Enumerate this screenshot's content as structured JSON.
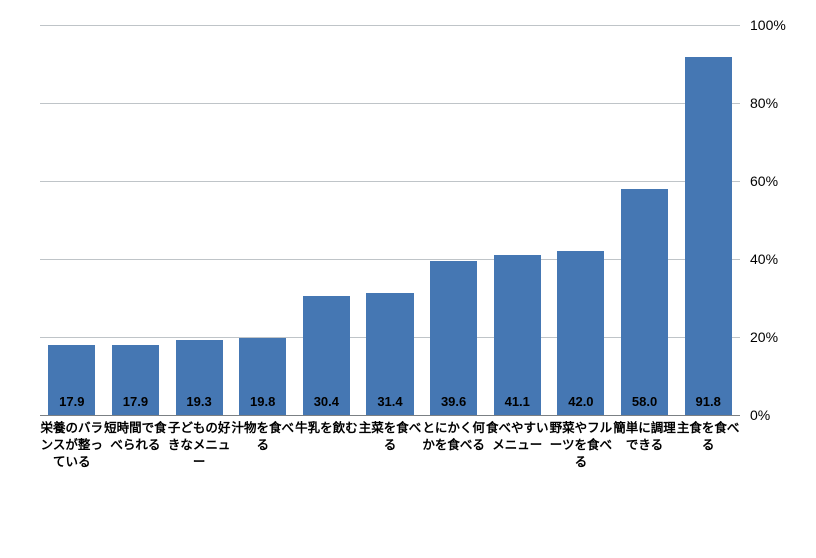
{
  "chart": {
    "type": "bar",
    "background_color": "#ffffff",
    "grid_color": "#bfc4c8",
    "baseline_color": "#7b8084",
    "bar_color": "#4577b3",
    "bar_width_ratio": 0.74,
    "value_label_fontsize": 13,
    "value_label_color": "#000000",
    "xlabel_fontsize": 12.5,
    "xlabel_color": "#000000",
    "ytick_fontsize": 14,
    "ytick_color": "#000000",
    "ylim": [
      0,
      100
    ],
    "ytick_step": 20,
    "ytick_suffix": "%",
    "yticks": [
      "0%",
      "20%",
      "40%",
      "60%",
      "80%",
      "100%"
    ],
    "categories": [
      "栄養のバランスが整っている",
      "短時間で食べられる",
      "子どもの好きなメニュー",
      "汁物を食べる",
      "牛乳を飲む",
      "主菜を食べる",
      "とにかく何かを食べる",
      "食べやすいメニュー",
      "野菜やフルーツを食べる",
      "簡単に調理できる",
      "主食を食べる"
    ],
    "values": [
      17.9,
      17.9,
      19.3,
      19.8,
      30.4,
      31.4,
      39.6,
      41.1,
      42.0,
      58.0,
      91.8
    ],
    "value_labels": [
      "17.9",
      "17.9",
      "19.3",
      "19.8",
      "30.4",
      "31.4",
      "39.6",
      "41.1",
      "42.0",
      "58.0",
      "91.8"
    ]
  }
}
